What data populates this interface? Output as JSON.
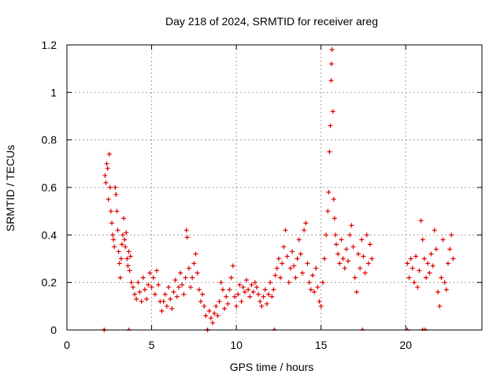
{
  "chart_data": {
    "type": "scatter",
    "title": "Day 218 of 2024, SRMTID for receiver areg",
    "xlabel": "GPS time / hours",
    "ylabel": "SRMTID / TECUs",
    "xlim": [
      0,
      24.5
    ],
    "ylim": [
      0,
      1.2
    ],
    "x_ticks": [
      0,
      5,
      10,
      15,
      20
    ],
    "x_tick_labels": [
      "0",
      "5",
      "10",
      "15",
      "20"
    ],
    "y_ticks": [
      0,
      0.2,
      0.4,
      0.6,
      0.8,
      1.0,
      1.2
    ],
    "y_tick_labels": [
      "0",
      "0.2",
      "0.4",
      "0.6",
      "0.8",
      "1",
      "1.2"
    ],
    "grid": true,
    "marker": "plus",
    "series": [
      {
        "name": "SRMTID",
        "color": "#e00000",
        "points": [
          [
            2.2,
            0.0
          ],
          [
            2.25,
            0.65
          ],
          [
            2.3,
            0.62
          ],
          [
            2.35,
            0.7
          ],
          [
            2.4,
            0.68
          ],
          [
            2.45,
            0.55
          ],
          [
            2.5,
            0.74
          ],
          [
            2.55,
            0.6
          ],
          [
            2.6,
            0.5
          ],
          [
            2.65,
            0.45
          ],
          [
            2.7,
            0.4
          ],
          [
            2.75,
            0.38
          ],
          [
            2.8,
            0.35
          ],
          [
            2.85,
            0.6
          ],
          [
            2.9,
            0.57
          ],
          [
            2.95,
            0.5
          ],
          [
            3.0,
            0.42
          ],
          [
            3.05,
            0.33
          ],
          [
            3.1,
            0.28
          ],
          [
            3.15,
            0.22
          ],
          [
            3.2,
            0.3
          ],
          [
            3.25,
            0.36
          ],
          [
            3.3,
            0.4
          ],
          [
            3.35,
            0.47
          ],
          [
            3.4,
            0.38
          ],
          [
            3.45,
            0.35
          ],
          [
            3.5,
            0.41
          ],
          [
            3.55,
            0.3
          ],
          [
            3.6,
            0.27
          ],
          [
            3.65,
            0.33
          ],
          [
            3.7,
            0.25
          ],
          [
            3.75,
            0.31
          ],
          [
            3.8,
            0.2
          ],
          [
            3.9,
            0.18
          ],
          [
            4.0,
            0.15
          ],
          [
            4.1,
            0.13
          ],
          [
            4.2,
            0.2
          ],
          [
            4.3,
            0.16
          ],
          [
            4.4,
            0.12
          ],
          [
            4.5,
            0.22
          ],
          [
            4.6,
            0.17
          ],
          [
            4.7,
            0.13
          ],
          [
            4.8,
            0.19
          ],
          [
            4.9,
            0.24
          ],
          [
            5.0,
            0.18
          ],
          [
            5.1,
            0.22
          ],
          [
            5.2,
            0.15
          ],
          [
            5.3,
            0.25
          ],
          [
            5.4,
            0.19
          ],
          [
            5.5,
            0.12
          ],
          [
            5.6,
            0.08
          ],
          [
            5.7,
            0.12
          ],
          [
            5.8,
            0.15
          ],
          [
            5.9,
            0.1
          ],
          [
            6.0,
            0.18
          ],
          [
            6.1,
            0.13
          ],
          [
            6.2,
            0.09
          ],
          [
            6.3,
            0.16
          ],
          [
            6.4,
            0.21
          ],
          [
            6.5,
            0.14
          ],
          [
            6.6,
            0.18
          ],
          [
            6.7,
            0.24
          ],
          [
            6.8,
            0.19
          ],
          [
            6.9,
            0.15
          ],
          [
            7.0,
            0.22
          ],
          [
            7.05,
            0.42
          ],
          [
            7.1,
            0.39
          ],
          [
            7.2,
            0.26
          ],
          [
            7.3,
            0.18
          ],
          [
            7.4,
            0.22
          ],
          [
            7.5,
            0.28
          ],
          [
            7.6,
            0.32
          ],
          [
            7.7,
            0.24
          ],
          [
            7.8,
            0.17
          ],
          [
            7.9,
            0.12
          ],
          [
            8.0,
            0.15
          ],
          [
            8.1,
            0.1
          ],
          [
            8.2,
            0.06
          ],
          [
            8.3,
            0.0
          ],
          [
            8.4,
            0.08
          ],
          [
            8.5,
            0.05
          ],
          [
            8.6,
            0.03
          ],
          [
            8.7,
            0.07
          ],
          [
            8.8,
            0.1
          ],
          [
            8.9,
            0.06
          ],
          [
            9.0,
            0.12
          ],
          [
            9.1,
            0.2
          ],
          [
            9.2,
            0.17
          ],
          [
            9.3,
            0.09
          ],
          [
            9.4,
            0.14
          ],
          [
            9.5,
            0.11
          ],
          [
            9.6,
            0.17
          ],
          [
            9.7,
            0.22
          ],
          [
            9.8,
            0.27
          ],
          [
            9.9,
            0.14
          ],
          [
            10.0,
            0.1
          ],
          [
            10.1,
            0.15
          ],
          [
            10.2,
            0.19
          ],
          [
            10.3,
            0.12
          ],
          [
            10.4,
            0.18
          ],
          [
            10.5,
            0.16
          ],
          [
            10.6,
            0.21
          ],
          [
            10.7,
            0.17
          ],
          [
            10.8,
            0.14
          ],
          [
            10.9,
            0.19
          ],
          [
            11.0,
            0.16
          ],
          [
            11.1,
            0.2
          ],
          [
            11.2,
            0.18
          ],
          [
            11.3,
            0.15
          ],
          [
            11.4,
            0.12
          ],
          [
            11.5,
            0.1
          ],
          [
            11.6,
            0.14
          ],
          [
            11.7,
            0.17
          ],
          [
            11.8,
            0.11
          ],
          [
            11.9,
            0.15
          ],
          [
            12.0,
            0.2
          ],
          [
            12.1,
            0.14
          ],
          [
            12.2,
            0.17
          ],
          [
            12.3,
            0.23
          ],
          [
            12.4,
            0.26
          ],
          [
            12.5,
            0.3
          ],
          [
            12.6,
            0.22
          ],
          [
            12.7,
            0.28
          ],
          [
            12.8,
            0.35
          ],
          [
            12.9,
            0.42
          ],
          [
            13.0,
            0.31
          ],
          [
            13.1,
            0.2
          ],
          [
            13.2,
            0.26
          ],
          [
            13.3,
            0.33
          ],
          [
            13.4,
            0.27
          ],
          [
            13.5,
            0.22
          ],
          [
            13.6,
            0.3
          ],
          [
            13.7,
            0.38
          ],
          [
            13.8,
            0.32
          ],
          [
            13.9,
            0.24
          ],
          [
            14.0,
            0.42
          ],
          [
            14.1,
            0.45
          ],
          [
            14.2,
            0.28
          ],
          [
            14.3,
            0.2
          ],
          [
            14.4,
            0.17
          ],
          [
            14.5,
            0.23
          ],
          [
            14.6,
            0.16
          ],
          [
            14.7,
            0.26
          ],
          [
            14.8,
            0.18
          ],
          [
            14.9,
            0.12
          ],
          [
            15.0,
            0.1
          ],
          [
            15.1,
            0.2
          ],
          [
            15.2,
            0.3
          ],
          [
            15.3,
            0.4
          ],
          [
            15.4,
            0.5
          ],
          [
            15.45,
            0.58
          ],
          [
            15.5,
            0.75
          ],
          [
            15.55,
            0.86
          ],
          [
            15.6,
            1.05
          ],
          [
            15.62,
            1.12
          ],
          [
            15.65,
            1.18
          ],
          [
            15.7,
            0.92
          ],
          [
            15.75,
            0.55
          ],
          [
            15.8,
            0.47
          ],
          [
            15.85,
            0.4
          ],
          [
            15.9,
            0.36
          ],
          [
            16.0,
            0.32
          ],
          [
            16.1,
            0.28
          ],
          [
            16.2,
            0.38
          ],
          [
            16.3,
            0.3
          ],
          [
            16.4,
            0.26
          ],
          [
            16.5,
            0.34
          ],
          [
            16.6,
            0.29
          ],
          [
            16.7,
            0.4
          ],
          [
            16.8,
            0.44
          ],
          [
            16.9,
            0.35
          ],
          [
            17.0,
            0.22
          ],
          [
            17.1,
            0.16
          ],
          [
            17.2,
            0.32
          ],
          [
            17.3,
            0.26
          ],
          [
            17.4,
            0.38
          ],
          [
            17.5,
            0.31
          ],
          [
            17.6,
            0.24
          ],
          [
            17.7,
            0.4
          ],
          [
            17.8,
            0.28
          ],
          [
            17.9,
            0.36
          ],
          [
            18.0,
            0.3
          ],
          [
            20.1,
            0.28
          ],
          [
            20.2,
            0.22
          ],
          [
            20.3,
            0.3
          ],
          [
            20.4,
            0.26
          ],
          [
            20.5,
            0.2
          ],
          [
            20.6,
            0.31
          ],
          [
            20.7,
            0.18
          ],
          [
            20.8,
            0.25
          ],
          [
            20.9,
            0.46
          ],
          [
            21.0,
            0.38
          ],
          [
            21.1,
            0.3
          ],
          [
            21.2,
            0.22
          ],
          [
            21.3,
            0.28
          ],
          [
            21.4,
            0.24
          ],
          [
            21.5,
            0.32
          ],
          [
            21.6,
            0.27
          ],
          [
            21.7,
            0.42
          ],
          [
            21.8,
            0.34
          ],
          [
            21.9,
            0.16
          ],
          [
            22.0,
            0.1
          ],
          [
            22.1,
            0.22
          ],
          [
            22.2,
            0.38
          ],
          [
            22.3,
            0.2
          ],
          [
            22.4,
            0.17
          ],
          [
            22.5,
            0.28
          ],
          [
            22.6,
            0.34
          ],
          [
            22.7,
            0.4
          ],
          [
            22.8,
            0.3
          ]
        ],
        "zero_markers": [
          2.2,
          3.65,
          8.3,
          12.25,
          17.45,
          20.1,
          21.0,
          21.15
        ]
      }
    ]
  }
}
